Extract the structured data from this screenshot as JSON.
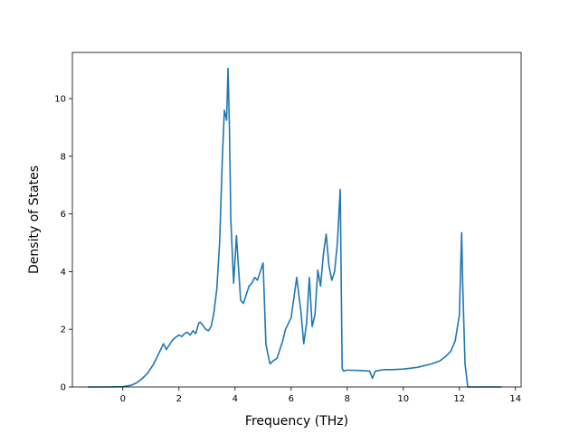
{
  "chart_data": {
    "type": "line",
    "title": "",
    "xlabel": "Frequency (THz)",
    "ylabel": "Density of States",
    "xlim": [
      -1.8,
      14.2
    ],
    "ylim": [
      0,
      11.6
    ],
    "xticks": [
      0,
      2,
      4,
      6,
      8,
      10,
      12,
      14
    ],
    "yticks": [
      0,
      2,
      4,
      6,
      8,
      10
    ],
    "grid": false,
    "legend": "none",
    "series": [
      {
        "color": "#1f77b4",
        "x": [
          -1.25,
          -0.5,
          0,
          0.3,
          0.5,
          0.7,
          0.9,
          1.1,
          1.3,
          1.45,
          1.55,
          1.65,
          1.75,
          1.85,
          2.0,
          2.1,
          2.2,
          2.3,
          2.4,
          2.5,
          2.6,
          2.7,
          2.75,
          2.85,
          2.95,
          3.05,
          3.15,
          3.25,
          3.35,
          3.45,
          3.55,
          3.62,
          3.7,
          3.75,
          3.8,
          3.85,
          3.95,
          4.05,
          4.12,
          4.2,
          4.3,
          4.4,
          4.5,
          4.6,
          4.7,
          4.8,
          4.9,
          5.0,
          5.1,
          5.2,
          5.25,
          5.35,
          5.5,
          5.7,
          5.8,
          6.0,
          6.2,
          6.35,
          6.45,
          6.55,
          6.65,
          6.75,
          6.85,
          6.95,
          7.05,
          7.15,
          7.25,
          7.35,
          7.45,
          7.55,
          7.65,
          7.75,
          7.82,
          7.87,
          7.95,
          8.2,
          8.5,
          8.8,
          8.9,
          9.0,
          9.3,
          9.6,
          10.0,
          10.5,
          11.0,
          11.3,
          11.5,
          11.7,
          11.85,
          12.0,
          12.08,
          12.12,
          12.2,
          12.3,
          13.5
        ],
        "y": [
          0,
          0,
          0.01,
          0.06,
          0.15,
          0.3,
          0.5,
          0.8,
          1.2,
          1.5,
          1.3,
          1.45,
          1.6,
          1.7,
          1.8,
          1.75,
          1.85,
          1.9,
          1.8,
          1.95,
          1.85,
          2.2,
          2.25,
          2.15,
          2.0,
          1.95,
          2.1,
          2.6,
          3.4,
          5.0,
          8.0,
          9.6,
          9.25,
          11.05,
          9.0,
          5.8,
          3.6,
          5.25,
          4.2,
          3.0,
          2.9,
          3.2,
          3.5,
          3.6,
          3.8,
          3.7,
          4.0,
          4.3,
          1.5,
          1.0,
          0.8,
          0.9,
          1.0,
          1.6,
          2.0,
          2.4,
          3.8,
          2.6,
          1.5,
          2.2,
          3.8,
          2.1,
          2.5,
          4.05,
          3.5,
          4.6,
          5.3,
          4.2,
          3.7,
          4.0,
          5.0,
          6.85,
          0.65,
          0.55,
          0.58,
          0.58,
          0.57,
          0.55,
          0.3,
          0.55,
          0.6,
          0.6,
          0.62,
          0.68,
          0.8,
          0.9,
          1.05,
          1.25,
          1.6,
          2.5,
          5.35,
          3.5,
          0.8,
          0,
          0
        ]
      }
    ]
  }
}
